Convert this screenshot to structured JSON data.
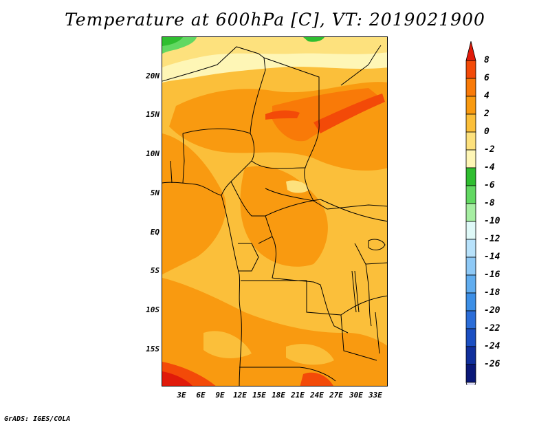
{
  "title": "Temperature at 600hPa [C], VT: 2019021900",
  "credit": "GrADS: IGES/COLA",
  "lat_labels": [
    "20N",
    "15N",
    "10N",
    "5N",
    "EQ",
    "5S",
    "10S",
    "15S"
  ],
  "lon_labels": [
    "3E",
    "6E",
    "9E",
    "12E",
    "15E",
    "18E",
    "21E",
    "24E",
    "27E",
    "30E",
    "33E"
  ],
  "colorbar": {
    "labels": [
      "8",
      "6",
      "4",
      "2",
      "0",
      "-2",
      "-4",
      "-6",
      "-8",
      "-10",
      "-12",
      "-14",
      "-16",
      "-18",
      "-20",
      "-22",
      "-24",
      "-26"
    ],
    "colors": [
      "#e01a0a",
      "#f34a08",
      "#f97a08",
      "#f99a10",
      "#fbbf3a",
      "#fde17d",
      "#fef6b6",
      "#2fbe30",
      "#62d862",
      "#a6eea2",
      "#dff9f8",
      "#b8e2fb",
      "#8ec9f6",
      "#61adef",
      "#3d8fe6",
      "#2b6dd8",
      "#1b4fc2",
      "#102f9c",
      "#0a1878",
      "#dcdcf5"
    ],
    "unit": "C"
  },
  "palette": {
    "deep_orange": "#f97a08",
    "orange": "#f99a10",
    "light_orange": "#fbbf3a",
    "pale_yellow": "#fde17d",
    "cream": "#fef6b6",
    "green": "#2fbe30",
    "red": "#e01a0a",
    "red_orange": "#f34a08"
  }
}
